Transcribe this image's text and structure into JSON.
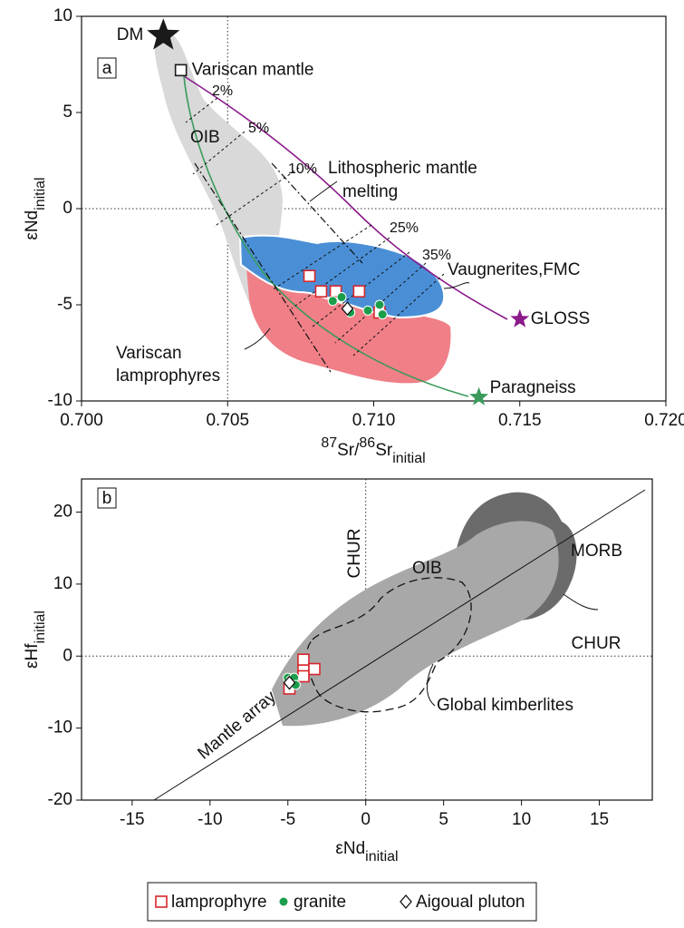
{
  "chart_data": [
    {
      "type": "scatter",
      "panel_label": "a",
      "xlabel": {
        "sup1": "87",
        "a": "Sr/",
        "sup2": "86",
        "b": "Sr",
        "sub": "initial"
      },
      "ylabel": {
        "main": "εNd",
        "sub": "initial"
      },
      "xlim": [
        0.7,
        0.72
      ],
      "ylim": [
        -10,
        10
      ],
      "xticks": [
        {
          "value": 0.7,
          "label": "0.700"
        },
        0.705,
        {
          "value": 0.71,
          "label": "0.710"
        },
        0.715,
        {
          "value": 0.72,
          "label": "0.720"
        }
      ],
      "yticks": [
        10,
        5,
        0,
        -5,
        -10
      ],
      "reference_lines": {
        "x": 0.705,
        "y": 0
      },
      "series": [
        {
          "name": "lamprophyre",
          "color": "#d7262b",
          "marker": "square",
          "x": [
            0.7078,
            0.7082,
            0.7087,
            0.7095,
            0.7102
          ],
          "values": [
            -3.5,
            -4.3,
            -4.3,
            -4.3,
            -5.4
          ]
        },
        {
          "name": "granite",
          "color": "#1a9e4b",
          "marker": "circle",
          "x": [
            0.7086,
            0.7089,
            0.7092,
            0.7098,
            0.7102,
            0.7103
          ],
          "values": [
            -4.8,
            -4.6,
            -5.4,
            -5.3,
            -5.0,
            -5.5
          ]
        },
        {
          "name": "Aigoual pluton",
          "color": "#111111",
          "marker": "diamond",
          "x": [
            0.7091
          ],
          "values": [
            -5.2
          ]
        }
      ],
      "endmembers": [
        {
          "name": "DM",
          "x": 0.7028,
          "value": 9.0,
          "color": "#1a1a1a",
          "marker": "big-star"
        },
        {
          "name": "Variscan mantle",
          "x": 0.7034,
          "value": 7.2,
          "color": "#1a1a1a",
          "marker": "square"
        },
        {
          "name": "GLOSS",
          "x": 0.715,
          "value": -5.75,
          "color": "#8b1a8b",
          "marker": "star"
        },
        {
          "name": "Paragneiss",
          "x": 0.7136,
          "value": -9.8,
          "color": "#3a9a5b",
          "marker": "star"
        }
      ],
      "mixing_labels": [
        "2%",
        "5%",
        "10%",
        "25%",
        "35%"
      ],
      "annotations": [
        "OIB",
        "Lithospheric mantle",
        "melting",
        "Vaugnerites,FMC",
        "Variscan",
        "lamprophyres"
      ]
    },
    {
      "type": "scatter",
      "panel_label": "b",
      "xlabel": {
        "main": "εNd",
        "sub": "initial"
      },
      "ylabel": {
        "main": "εHf",
        "sub": "initial"
      },
      "xlim": [
        -18.25,
        18.4
      ],
      "ylim": [
        -20,
        24.6
      ],
      "xticks": [
        -15,
        -10,
        -5,
        0,
        5,
        10,
        15
      ],
      "yticks": [
        -20,
        -10,
        0,
        10,
        20
      ],
      "reference_lines": {
        "x": 0,
        "y": 0
      },
      "series": [
        {
          "color": "#d7262b",
          "marker": "square",
          "x": [
            -4.9,
            -4.0,
            -4.0,
            -3.3,
            -4.0
          ],
          "values": [
            -4.5,
            -0.5,
            -2.0,
            -1.8,
            -2.8
          ]
        },
        {
          "color": "#1a9e4b",
          "marker": "circle",
          "x": [
            -5.0,
            -4.8,
            -4.6,
            -4.5
          ],
          "values": [
            -3.0,
            -3.3,
            -3.0,
            -4.0
          ]
        },
        {
          "color": "#111111",
          "marker": "diamond",
          "x": [
            -4.9
          ],
          "values": [
            -3.7
          ]
        }
      ],
      "annotations": [
        "CHUR",
        "CHUR",
        "OIB",
        "MORB",
        "Global kimberlites",
        "Mantle array"
      ]
    }
  ]
}
